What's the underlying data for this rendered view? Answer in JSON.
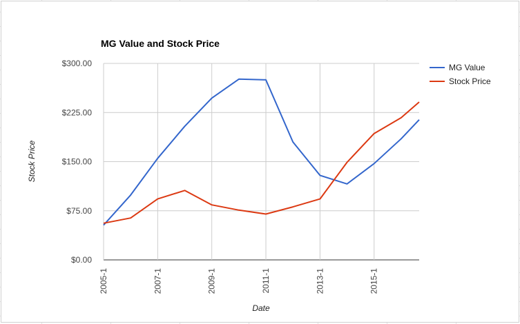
{
  "chart_data": {
    "type": "line",
    "title": "MG Value and Stock Price",
    "xlabel": "Date",
    "ylabel": "Stock Price",
    "x": [
      "2005-1",
      "2006-1",
      "2007-1",
      "2008-1",
      "2009-1",
      "2010-1",
      "2011-1",
      "2012-1",
      "2013-1",
      "2014-1",
      "2015-1",
      "2016-1",
      "2016-9"
    ],
    "x_tick_labels": [
      "2005-1",
      "2007-1",
      "2009-1",
      "2011-1",
      "2013-1",
      "2015-1"
    ],
    "y_tick_labels": [
      "$0.00",
      "$75.00",
      "$150.00",
      "$225.00",
      "$300.00"
    ],
    "ylim": [
      0,
      300
    ],
    "grid": true,
    "legend_position": "right",
    "series": [
      {
        "name": "MG Value",
        "color": "#3366cc",
        "values": [
          53,
          99,
          155,
          204,
          247,
          276,
          275,
          180,
          129,
          116,
          147,
          185,
          214
        ]
      },
      {
        "name": "Stock Price",
        "color": "#dc3912",
        "values": [
          56,
          64,
          93,
          106,
          84,
          76,
          70,
          81,
          93,
          149,
          193,
          217,
          241
        ]
      }
    ]
  }
}
